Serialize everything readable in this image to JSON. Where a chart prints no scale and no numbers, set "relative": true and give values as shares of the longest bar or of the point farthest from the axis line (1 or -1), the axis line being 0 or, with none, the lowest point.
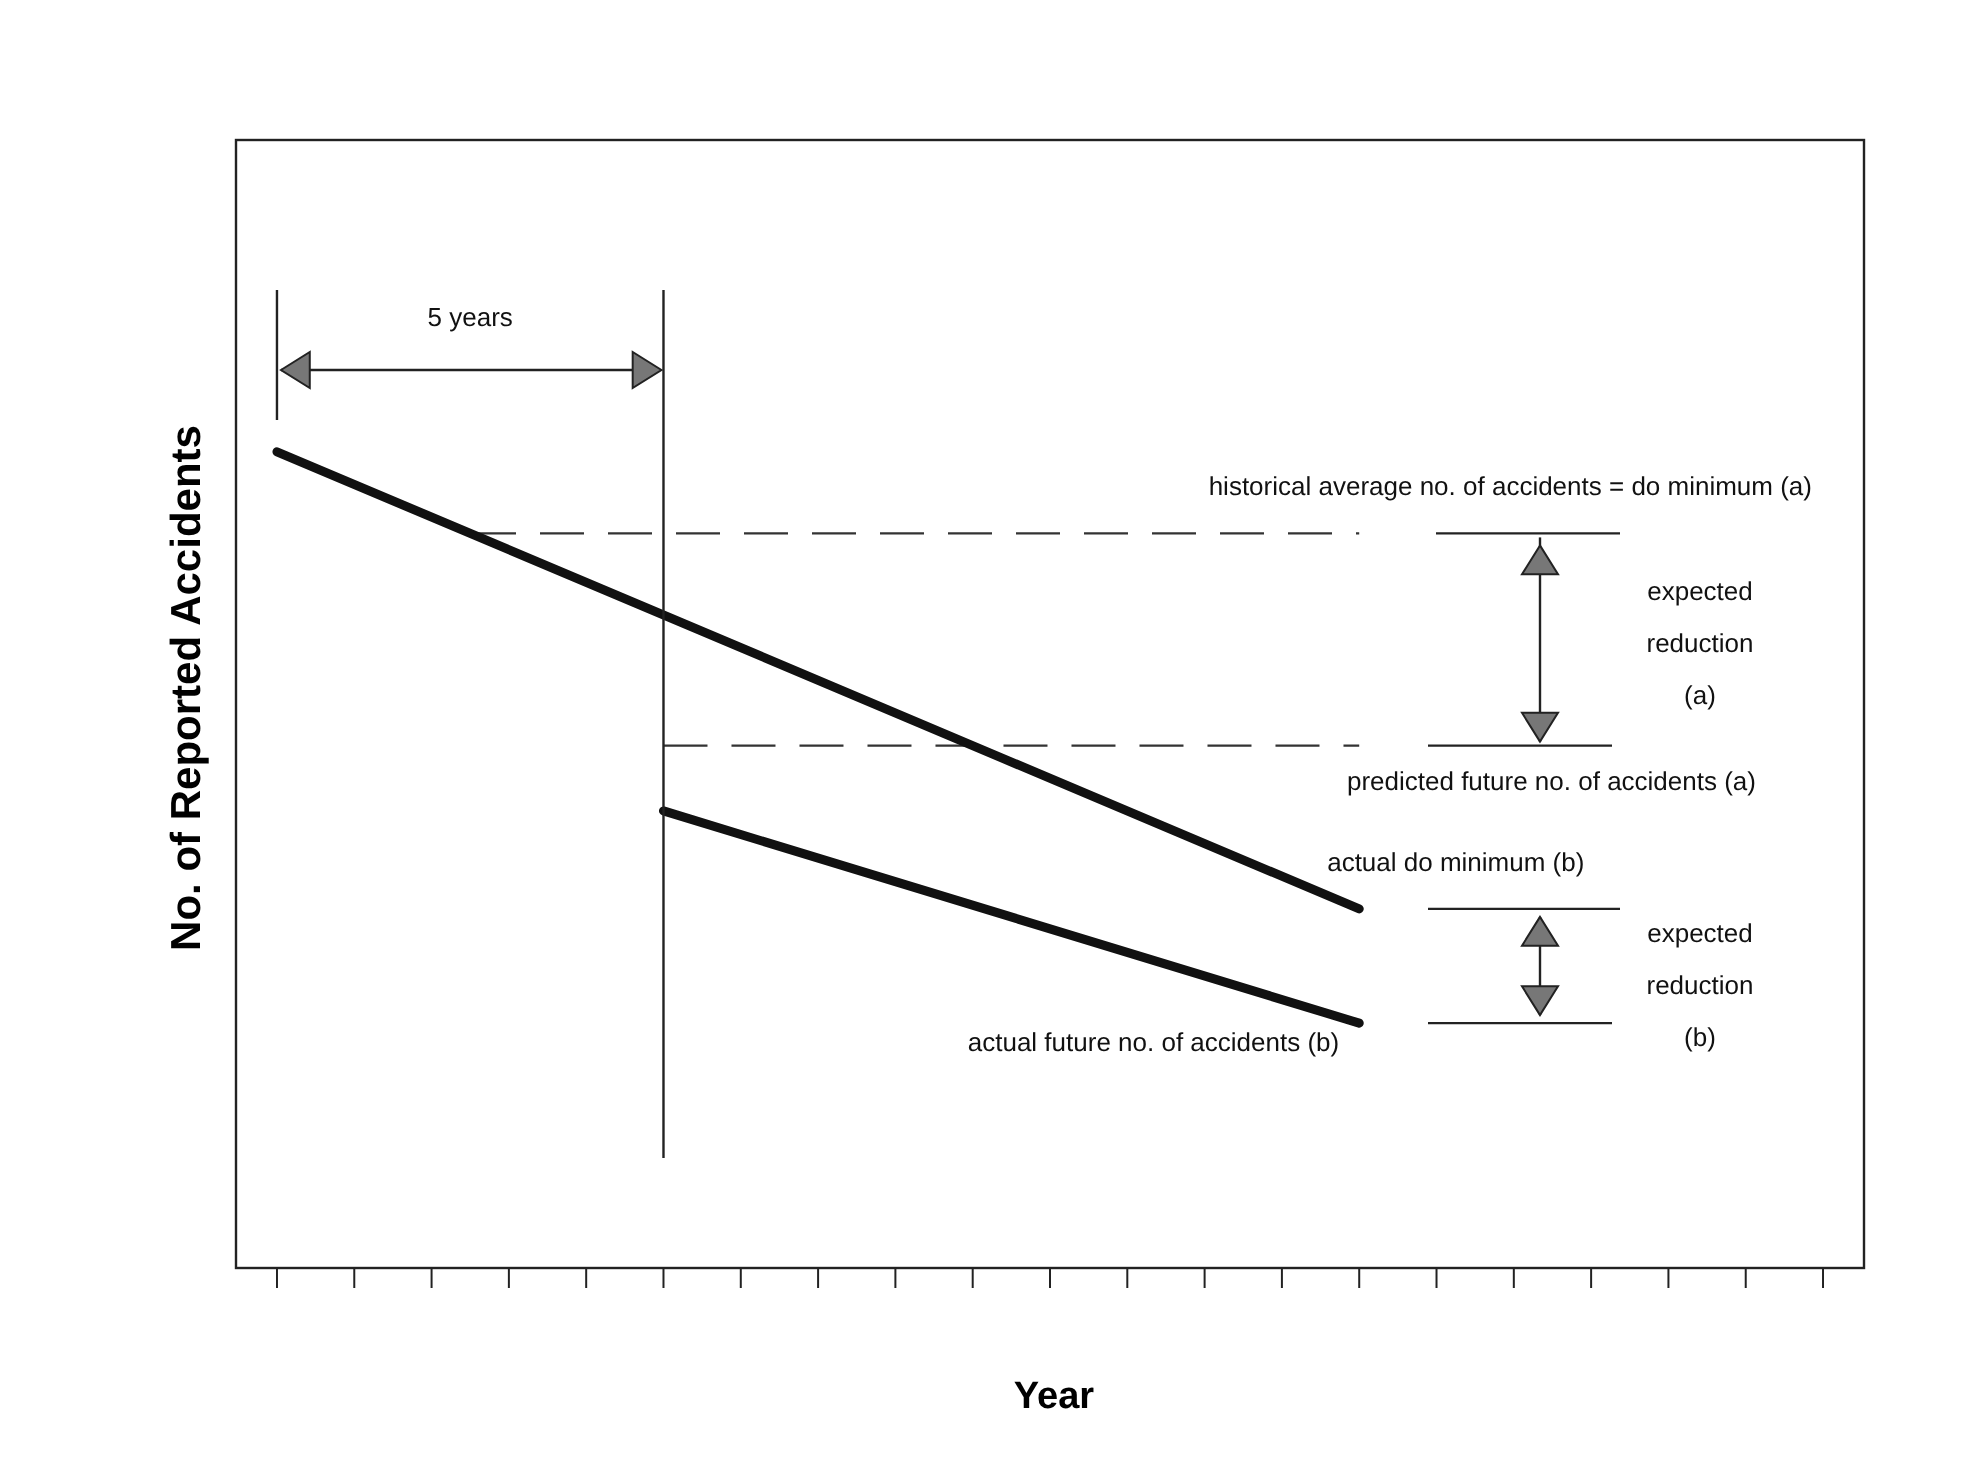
{
  "chart_data": {
    "type": "line",
    "relative": true,
    "xlabel": "Year",
    "ylabel": "No. of Reported Accidents",
    "categories": [
      null,
      null,
      null,
      null,
      null,
      null,
      null,
      null,
      null,
      null,
      null,
      null,
      null,
      null,
      null,
      null,
      null,
      null,
      null,
      null,
      null
    ],
    "series": [
      {
        "color": "#111111",
        "values": [
          1,
          null,
          null,
          null,
          null,
          null,
          null,
          null,
          null,
          null,
          null,
          null,
          null,
          null,
          0.44,
          null,
          null,
          null,
          null,
          null,
          null
        ]
      },
      {
        "color": "#111111",
        "values": [
          null,
          null,
          null,
          null,
          null,
          0.56,
          null,
          null,
          null,
          null,
          null,
          null,
          null,
          null,
          0.3,
          null,
          null,
          null,
          null,
          null,
          null
        ]
      }
    ],
    "ref_lines": [
      {
        "axis": "y",
        "value": 0.9,
        "label": "historical average no. of accidents = do minimum  (a)",
        "color": "#333333",
        "line_style": "dashed"
      },
      {
        "axis": "y",
        "value": 0.64,
        "label": "predicted future no. of accidents  (a)",
        "color": "#333333",
        "line_style": "dashed"
      }
    ],
    "annotations": [
      "5 years",
      "expected\nreduction\n(a)",
      "expected\nreduction\n(b)",
      "actual do minimum  (b)",
      "actual future no. of accidents  (b)"
    ]
  }
}
